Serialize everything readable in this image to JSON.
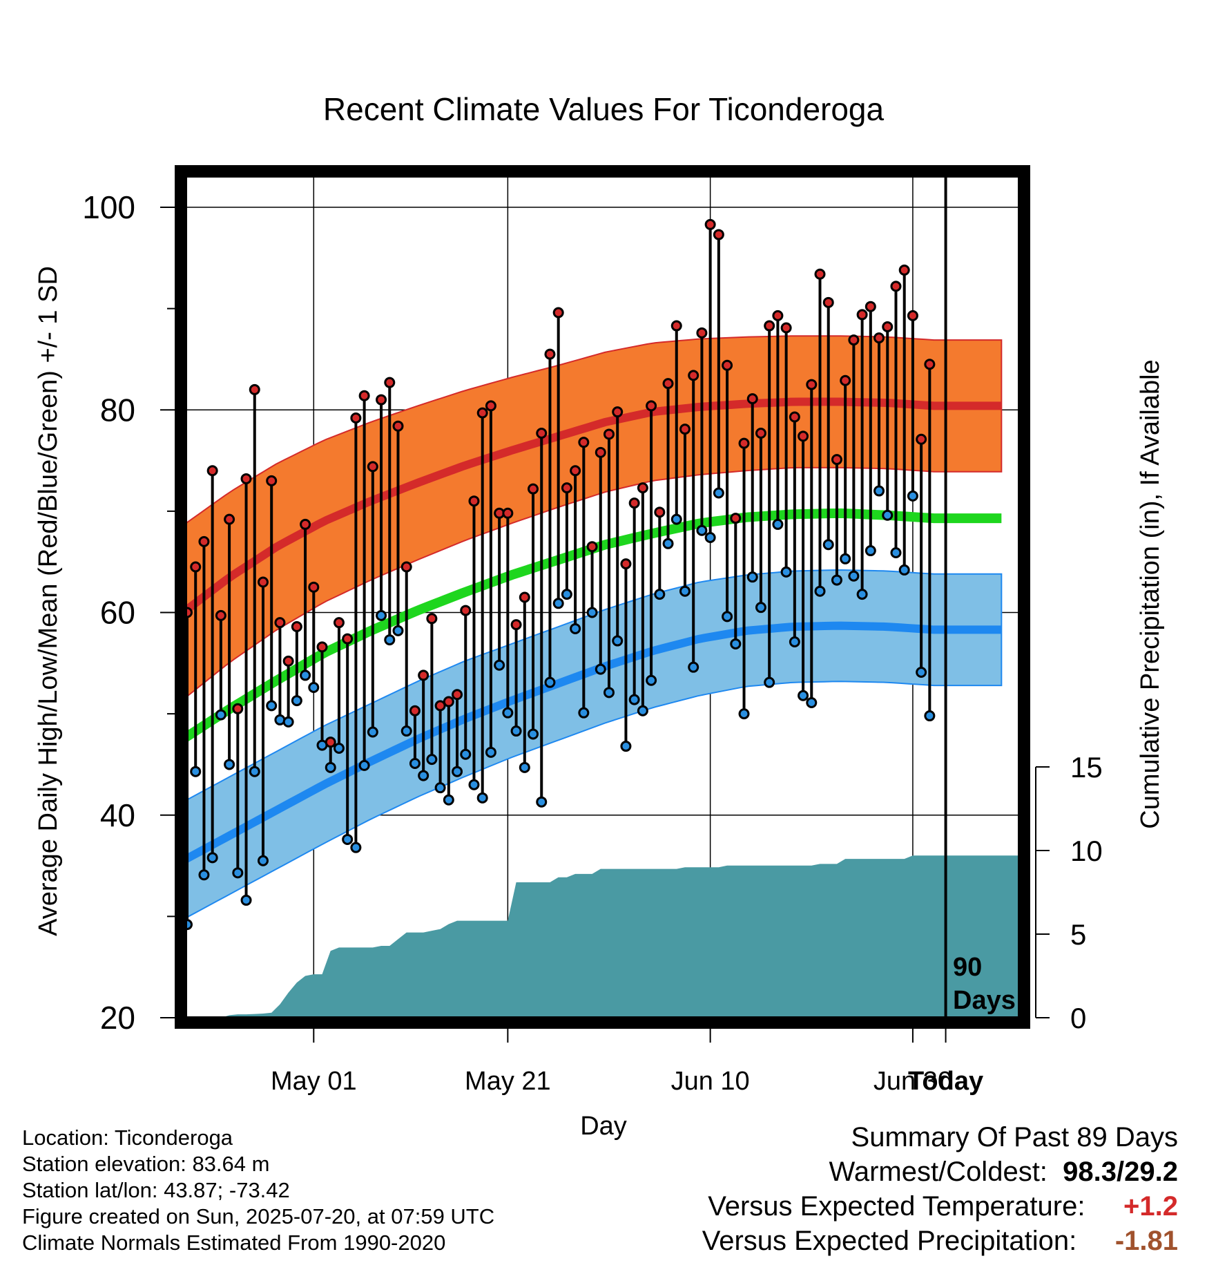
{
  "chart_data": {
    "type": "line",
    "title": "Recent Climate Values For Ticonderoga",
    "xlabel": "Day",
    "ylabel": "Average Daily High/Low/Mean (Red/Blue/Green) +/- 1 SD",
    "y2label": "Cumulative Precipitation (in), If Available",
    "ylim": [
      20,
      100
    ],
    "y_ticks": [
      "20",
      "40",
      "60",
      "80",
      "100"
    ],
    "y2lim": [
      0,
      15
    ],
    "y2_ticks": [
      "0",
      "5",
      "10",
      "15"
    ],
    "x_ticks": [
      "May 01",
      "May 21",
      "Jun 10",
      "Jun 30",
      "Today"
    ],
    "today_marker": {
      "line1": "90",
      "line2": "Days"
    },
    "grid": true,
    "day_count": 90,
    "normals": {
      "high_mean": [
        60.0,
        63.5,
        66.5,
        69.0,
        71.0,
        72.8,
        74.5,
        76.0,
        77.4,
        78.8,
        79.8,
        80.3,
        80.6,
        80.8,
        80.8,
        80.7,
        80.4
      ],
      "high_sd": [
        8.6,
        8.4,
        8.2,
        8.0,
        7.8,
        7.6,
        7.4,
        7.2,
        7.0,
        6.9,
        6.8,
        6.7,
        6.6,
        6.5,
        6.5,
        6.5,
        6.5
      ],
      "low_mean": [
        35.5,
        38.0,
        40.5,
        43.0,
        45.3,
        47.5,
        49.5,
        51.3,
        53.0,
        54.7,
        56.2,
        57.4,
        58.2,
        58.6,
        58.7,
        58.6,
        58.3
      ],
      "low_sd": [
        5.8,
        5.8,
        5.8,
        5.8,
        5.7,
        5.7,
        5.7,
        5.6,
        5.6,
        5.6,
        5.6,
        5.6,
        5.5,
        5.5,
        5.5,
        5.5,
        5.5
      ],
      "mean": [
        47.5,
        50.5,
        53.3,
        56.0,
        58.2,
        60.2,
        62.0,
        63.7,
        65.2,
        66.7,
        67.8,
        68.8,
        69.4,
        69.7,
        69.8,
        69.6,
        69.3
      ]
    },
    "series": [
      {
        "name": "High",
        "values": [
          60,
          64.5,
          67,
          74,
          59.7,
          69.2,
          50.5,
          73.2,
          82,
          63,
          73,
          59,
          55.2,
          58.6,
          68.7,
          62.5,
          56.6,
          47.2,
          59,
          57.4,
          79.2,
          81.4,
          74.4,
          81,
          82.7,
          78.4,
          64.5,
          50.3,
          53.8,
          59.4,
          50.8,
          51.2,
          51.9,
          60.2,
          71,
          79.7,
          80.4,
          69.8,
          69.8,
          58.8,
          61.5,
          72.2,
          77.7,
          85.5,
          89.6,
          72.3,
          74,
          76.8,
          66.5,
          75.8,
          77.6,
          79.8,
          64.8,
          70.8,
          72.3,
          80.4,
          69.9,
          82.6,
          88.3,
          78.1,
          83.4,
          87.6,
          98.3,
          97.3,
          84.4,
          69.3,
          76.7,
          81.1,
          77.7,
          88.3,
          89.3,
          88.1,
          79.3,
          77.4,
          82.5,
          93.4,
          90.6,
          75.1,
          82.9,
          86.9,
          89.4,
          90.2,
          87.1,
          88.2,
          92.2,
          93.8,
          89.3,
          77.1,
          84.5
        ]
      },
      {
        "name": "Low",
        "values": [
          29.2,
          44.3,
          34.1,
          35.8,
          49.9,
          45,
          34.3,
          31.6,
          44.3,
          35.5,
          50.8,
          49.4,
          49.2,
          51.3,
          53.8,
          52.6,
          46.9,
          44.7,
          46.6,
          37.6,
          36.8,
          44.9,
          48.2,
          59.7,
          57.3,
          58.2,
          48.3,
          45.1,
          43.9,
          45.5,
          42.7,
          41.5,
          44.3,
          46,
          43,
          41.7,
          46.2,
          54.8,
          50.1,
          48.3,
          44.7,
          48,
          41.3,
          53.1,
          60.9,
          61.8,
          58.4,
          50.1,
          60,
          54.4,
          52.1,
          57.2,
          46.8,
          51.4,
          50.3,
          53.3,
          61.8,
          66.8,
          69.2,
          62.1,
          54.6,
          68.1,
          67.4,
          71.8,
          59.6,
          56.9,
          50,
          63.5,
          60.5,
          53.1,
          68.7,
          64,
          57.1,
          51.8,
          51.1,
          62.1,
          66.7,
          63.2,
          65.3,
          63.6,
          61.8,
          66.1,
          72,
          69.6,
          65.9,
          64.2,
          71.5,
          54.1,
          49.8
        ]
      }
    ],
    "precip_cumulative": [
      0,
      0,
      0,
      0,
      0,
      0.15,
      0.2,
      0.2,
      0.22,
      0.25,
      0.3,
      0.8,
      1.5,
      2.1,
      2.5,
      2.6,
      2.6,
      4.0,
      4.2,
      4.2,
      4.2,
      4.2,
      4.2,
      4.3,
      4.3,
      4.7,
      5.1,
      5.1,
      5.1,
      5.2,
      5.3,
      5.6,
      5.8,
      5.8,
      5.8,
      5.8,
      5.8,
      5.8,
      5.8,
      8.1,
      8.1,
      8.1,
      8.1,
      8.1,
      8.4,
      8.4,
      8.6,
      8.6,
      8.6,
      8.9,
      8.9,
      8.9,
      8.9,
      8.9,
      8.9,
      8.9,
      8.9,
      8.9,
      8.9,
      9.0,
      9.0,
      9.0,
      9.0,
      9.0,
      9.1,
      9.1,
      9.1,
      9.1,
      9.1,
      9.1,
      9.1,
      9.1,
      9.1,
      9.1,
      9.1,
      9.2,
      9.2,
      9.2,
      9.5,
      9.5,
      9.5,
      9.5,
      9.5,
      9.5,
      9.5,
      9.5,
      9.7,
      9.7,
      9.7,
      9.7,
      9.7
    ],
    "summary": {
      "title": "Summary Of Past 89 Days",
      "warm_cold_label": "Warmest/Coldest:",
      "warmest": "98.3",
      "slash": "/",
      "coldest": "29.2",
      "temp_label": "Versus Expected Temperature:",
      "temp_value": "+1.2",
      "precip_label": "Versus Expected Precipitation:",
      "precip_value": "-1.81"
    },
    "colors": {
      "high_band": "#f47a2e",
      "high_line": "#d42a2a",
      "low_band": "#7fbfe6",
      "low_line": "#1e88f0",
      "mean_line": "#1ed61e",
      "precip": "#4a9aa3",
      "high_dot": "#d42a2a",
      "low_dot": "#2a8fe0",
      "warmest": "#000000",
      "temp_value": "#d42a2a",
      "precip_value": "#a0522d"
    }
  },
  "station_info": {
    "location": "Location: Ticonderoga",
    "elevation": "Station elevation: 83.64 m",
    "latlon": "Station lat/lon: 43.87; -73.42",
    "created": "Figure created on Sun, 2025-07-20, at 07:59 UTC",
    "normals": "Climate Normals Estimated From 1990-2020"
  }
}
